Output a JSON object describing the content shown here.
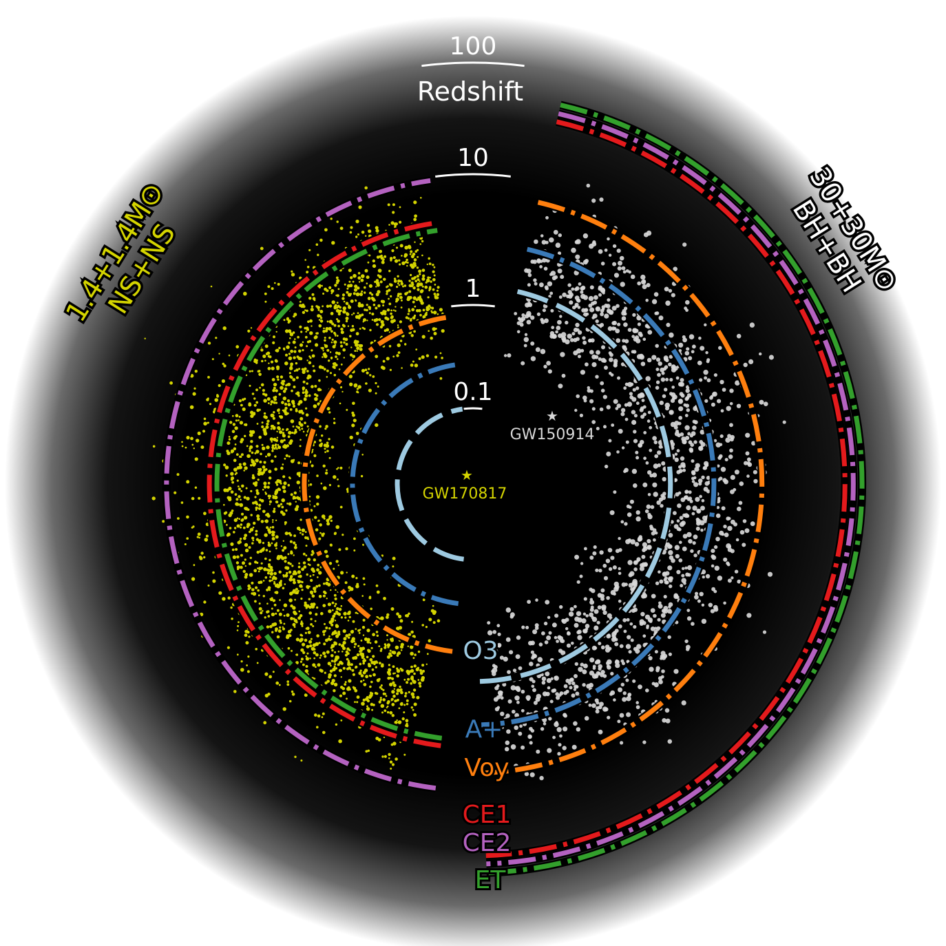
{
  "chart_data": {
    "type": "scatter",
    "title": "",
    "redshift_axis": {
      "label": "Redshift",
      "ticks": [
        {
          "label": "0.1",
          "z": 0.1
        },
        {
          "label": "1",
          "z": 1
        },
        {
          "label": "10",
          "z": 10
        },
        {
          "label": "100",
          "z": 100
        }
      ],
      "scale": "log"
    },
    "populations": [
      {
        "name": "1.4+1.4M⊙\nNS+NS",
        "line1": "1.4+1.4M⊙",
        "line2": "NS+NS",
        "color": "#d4d400",
        "side": "left",
        "z_peak": 1.9
      },
      {
        "name": "30+30M⊙\nBH+BH",
        "line1": "30+30M⊙",
        "line2": "BH+BH",
        "color": "#d8d8d8",
        "side": "right",
        "z_peak": 2.0
      }
    ],
    "events": [
      {
        "name": "GW170817",
        "color": "#d4d400",
        "population": "NS+NS"
      },
      {
        "name": "GW150914",
        "color": "#d8d8d8",
        "population": "BH+BH"
      }
    ],
    "detectors": [
      {
        "name": "O3",
        "color": "#9ecae1",
        "dash": "long",
        "z_ns": 0.02,
        "z_bh": 1.1
      },
      {
        "name": "A+",
        "color": "#3a7ab8",
        "dash": "dashdot",
        "z_ns": 0.04,
        "z_bh": 1.6
      },
      {
        "name": "Voy",
        "color": "#ff7f0e",
        "dash": "dashdot",
        "z_ns": 0.09,
        "z_bh": 3.3
      },
      {
        "name": "CE1",
        "color": "#e41a1c",
        "dash": "dashdot",
        "z_ns": 2.5,
        "z_bh": 19
      },
      {
        "name": "CE2",
        "color": "#b462c0",
        "dash": "dashdot",
        "z_ns": 5.0,
        "z_bh": 21
      },
      {
        "name": "ET",
        "color": "#33a02c",
        "dash": "dashdot",
        "z_ns": 2.3,
        "z_bh": 24
      }
    ]
  }
}
